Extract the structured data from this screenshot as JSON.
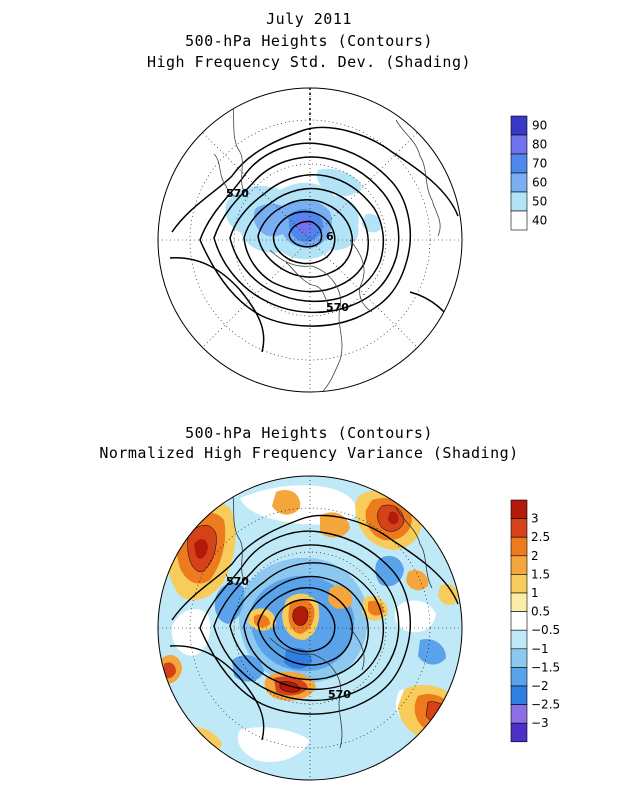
{
  "page": {
    "main_title": "July 2011",
    "top_subtitle_1": "500-hPa Heights (Contours)",
    "top_subtitle_2": "High Frequency Std. Dev. (Shading)",
    "bottom_subtitle_1": "500-hPa Heights (Contours)",
    "bottom_subtitle_2": "Normalized High Frequency Variance (Shading)"
  },
  "top_map": {
    "contour_labels": [
      "570",
      "570",
      "6"
    ],
    "colorbar": {
      "labels": [
        "90",
        "80",
        "70",
        "60",
        "50",
        "40"
      ],
      "colors": [
        "#3838c8",
        "#6f73f0",
        "#4f88ea",
        "#79aff2",
        "#b3e3f7",
        "#ffffff"
      ]
    }
  },
  "bottom_map": {
    "contour_labels": [
      "570",
      "570"
    ],
    "colorbar": {
      "labels": [
        "3",
        "2.5",
        "2",
        "1.5",
        "1",
        "0.5",
        "−0.5",
        "−1",
        "−1.5",
        "−2",
        "−2.5",
        "−3"
      ],
      "colors": [
        "#b21a0a",
        "#d5421a",
        "#ed7b1e",
        "#f4a53c",
        "#f7cc5a",
        "#fbeda8",
        "#ffffff",
        "#bfe9f7",
        "#8cc8f0",
        "#5aa3ea",
        "#2f7ee2",
        "#8c6fe6",
        "#4a2fc8"
      ]
    }
  }
}
